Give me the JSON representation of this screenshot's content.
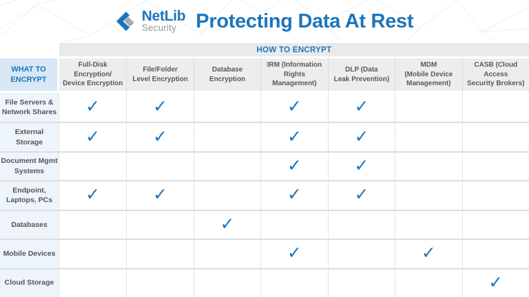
{
  "brand": {
    "name": "NetLib",
    "subname": "Security"
  },
  "title": "Protecting Data At Rest",
  "icons": {
    "check": "✓",
    "logo": "netlib-diamond-logo"
  },
  "colors": {
    "accent_blue": "#1C75BC",
    "brand_gray": "#939598",
    "check_blue": "#1C75BC",
    "band_bg": "#E9EAEB",
    "column_header_bg": "#EDEDEE",
    "row_group_header_bg": "#D8E7F6",
    "row_label_bg": "#EDF4FA",
    "grid_line": "#DBDEE0",
    "header_text": "#58595B"
  },
  "chart_data": {
    "type": "table",
    "title": "Protecting Data At Rest",
    "column_group_header": "HOW TO ENCRYPT",
    "row_group_header": "WHAT TO\nENCRYPT",
    "columns": [
      "Full-Disk Encryption/\nDevice Encryption",
      "File/Folder\nLevel Encryption",
      "Database Encryption",
      "IRM (Information\nRights Management)",
      "DLP (Data\nLeak Prevention)",
      "MDM\n(Mobile Device\nManagement)",
      "CASB (Cloud Access\nSecurity Brokers)"
    ],
    "rows": [
      {
        "label": "File Servers &\nNetwork Shares",
        "checks": [
          true,
          true,
          false,
          true,
          true,
          false,
          false
        ]
      },
      {
        "label": "External\nStorage",
        "checks": [
          true,
          true,
          false,
          true,
          true,
          false,
          false
        ]
      },
      {
        "label": "Document Mgmt\nSystems",
        "checks": [
          false,
          false,
          false,
          true,
          true,
          false,
          false
        ]
      },
      {
        "label": "Endpoint,\nLaptops, PCs",
        "checks": [
          true,
          true,
          false,
          true,
          true,
          false,
          false
        ]
      },
      {
        "label": "Databases",
        "checks": [
          false,
          false,
          true,
          false,
          false,
          false,
          false
        ]
      },
      {
        "label": "Mobile Devices",
        "checks": [
          false,
          false,
          false,
          true,
          false,
          true,
          false
        ]
      },
      {
        "label": "Cloud Storage",
        "checks": [
          false,
          false,
          false,
          false,
          false,
          false,
          true
        ]
      }
    ]
  }
}
